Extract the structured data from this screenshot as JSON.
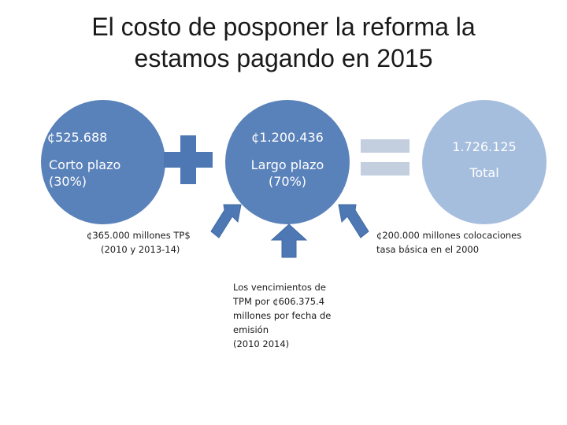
{
  "title": {
    "line1": "El costo de posponer la reforma la",
    "line2": "estamos pagando en 2015"
  },
  "circles": [
    {
      "value": "¢525.688",
      "label_line1": "Corto plazo",
      "label_line2": "(30%)"
    },
    {
      "value": "¢1.200.436",
      "label_line1": "Largo plazo",
      "label_line2": "(70%)"
    },
    {
      "value": "1.726.125",
      "label_line1": "Total"
    }
  ],
  "notes": {
    "left": {
      "line1": "¢365.000 millones TP$",
      "line2": "(2010 y 2013-14)"
    },
    "right": {
      "line1": "¢200.000 millones colocaciones",
      "line2": "tasa básica en el 2000"
    },
    "middle": {
      "line1": "Los vencimientos de",
      "line2": "TPM por ¢606.375.4",
      "line3": "millones por fecha de",
      "line4": "emisión",
      "line5": "(2010 2014)"
    }
  },
  "colors": {
    "circle_dark": "#5a82ba",
    "circle_light": "#a6bede",
    "plus": "#4e78b3",
    "equals": "#c3cedf",
    "arrow": "#4e78b3"
  }
}
